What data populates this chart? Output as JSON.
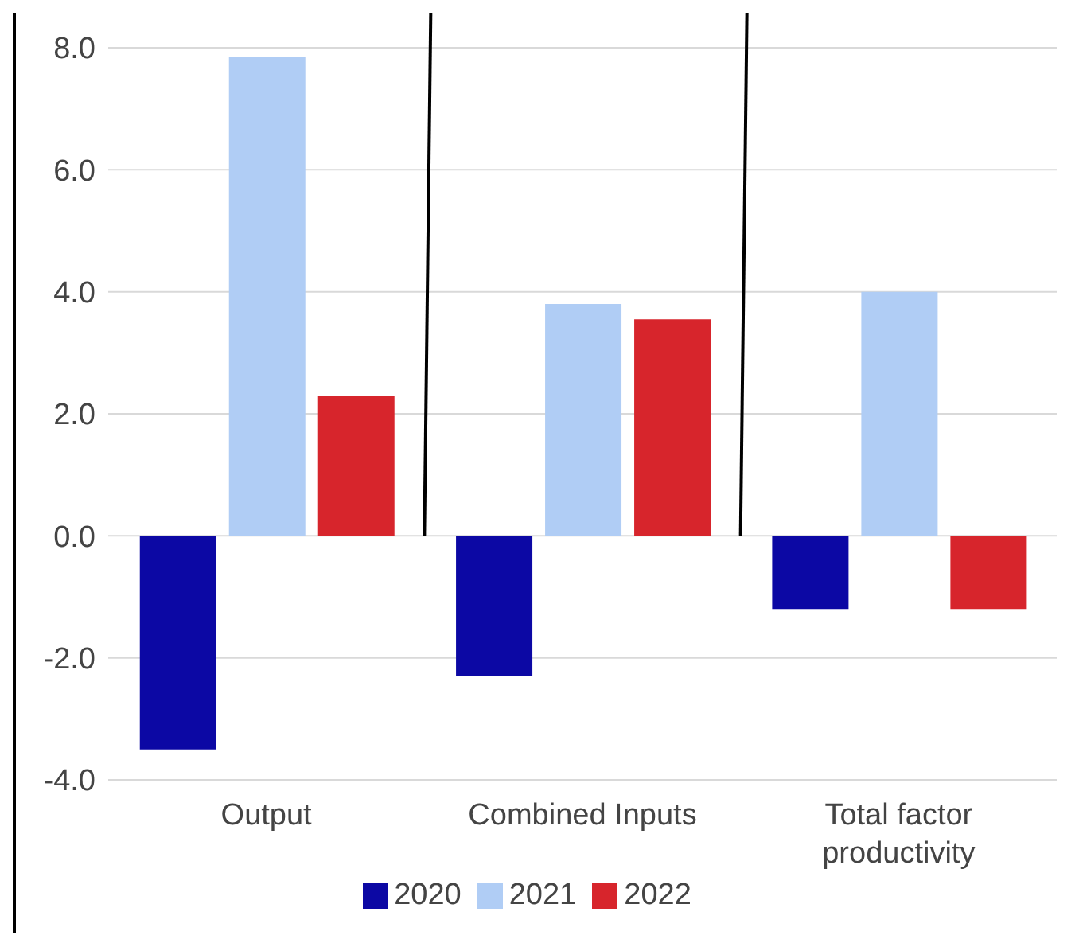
{
  "chart_data": {
    "type": "bar",
    "categories": [
      "Output",
      "Combined Inputs",
      "Total factor productivity"
    ],
    "series": [
      {
        "name": "2020",
        "color": "#0c08a4",
        "values": [
          -3.5,
          -2.3,
          -1.2
        ]
      },
      {
        "name": "2021",
        "color": "#b0cdf5",
        "values": [
          7.85,
          3.8,
          4.0
        ]
      },
      {
        "name": "2022",
        "color": "#d7252c",
        "values": [
          2.3,
          3.55,
          -1.2
        ]
      }
    ],
    "ylim": [
      -4,
      8
    ],
    "yticks": [
      {
        "value": -4,
        "label": "-4.0"
      },
      {
        "value": -2,
        "label": "-2.0"
      },
      {
        "value": 0,
        "label": "0.0"
      },
      {
        "value": 2,
        "label": "2.0"
      },
      {
        "value": 4,
        "label": "4.0"
      },
      {
        "value": 6,
        "label": "6.0"
      },
      {
        "value": 8,
        "label": "8.0"
      }
    ],
    "grid": "y",
    "legend": "bottom"
  }
}
